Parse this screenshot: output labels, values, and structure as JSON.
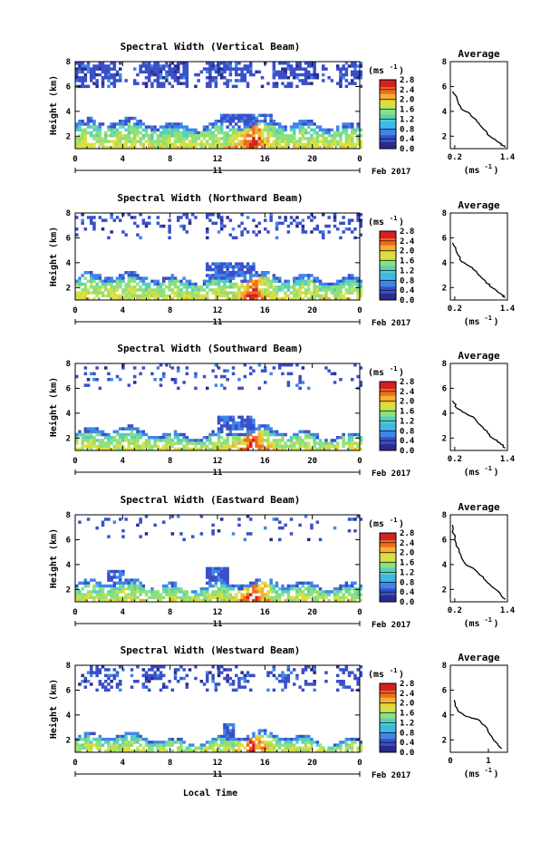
{
  "figure": {
    "xlabel_bottom": "Local Time",
    "date_label": "Feb 2017",
    "day_label": "11",
    "colorbar_unit": "(ms",
    "colorbar_unit_exp": "-1",
    "colorbar_unit_close": ")",
    "colorbar_ticks": [
      "0.0",
      "0.4",
      "0.8",
      "1.2",
      "1.6",
      "2.0",
      "2.4",
      "2.8"
    ],
    "avg_title": "Average",
    "avg_xlabel": "(ms",
    "avg_xlabel_exp": "-1",
    "avg_xlabel_close": ")",
    "ylabel": "Height (km)",
    "colors": {
      "scale": [
        "#2b2b8a",
        "#3a4fc8",
        "#3f86e8",
        "#3fb8e8",
        "#55d0c0",
        "#8ee07a",
        "#d8e040",
        "#f5b030",
        "#f06a20",
        "#d42020"
      ]
    }
  },
  "chart_data": [
    {
      "type": "heatmap",
      "title": "Spectral Width (Vertical Beam)",
      "xlabel": "",
      "ylabel": "Height (km)",
      "x_ticks": [
        "0",
        "4",
        "8",
        "12",
        "16",
        "20",
        "0"
      ],
      "y_ticks": [
        "2",
        "4",
        "6",
        "8"
      ],
      "xlim": [
        0,
        24
      ],
      "ylim": [
        1,
        8
      ],
      "colorbar": {
        "range": [
          0.0,
          2.8
        ],
        "ticks": [
          "0.0",
          "0.4",
          "0.8",
          "1.2",
          "1.6",
          "2.0",
          "2.4",
          "2.8"
        ]
      },
      "average_profile": {
        "x_ticks": [
          "0.2",
          "1.4"
        ],
        "y_ticks": [
          "2",
          "4",
          "6",
          "8"
        ],
        "xlim": [
          0.1,
          1.4
        ],
        "points": [
          [
            0.15,
            5.6
          ],
          [
            0.25,
            5.0
          ],
          [
            0.35,
            4.2
          ],
          [
            0.55,
            3.8
          ],
          [
            0.7,
            3.2
          ],
          [
            0.85,
            2.6
          ],
          [
            1.0,
            2.0
          ],
          [
            1.2,
            1.5
          ],
          [
            1.35,
            1.1
          ]
        ]
      }
    },
    {
      "type": "heatmap",
      "title": "Spectral Width (Northward Beam)",
      "xlabel": "",
      "ylabel": "Height (km)",
      "x_ticks": [
        "0",
        "4",
        "8",
        "12",
        "16",
        "20",
        "0"
      ],
      "y_ticks": [
        "2",
        "4",
        "6",
        "8"
      ],
      "xlim": [
        0,
        24
      ],
      "ylim": [
        1,
        8
      ],
      "colorbar": {
        "range": [
          0.0,
          2.8
        ],
        "ticks": [
          "0.0",
          "0.4",
          "0.8",
          "1.2",
          "1.6",
          "2.0",
          "2.4",
          "2.8"
        ]
      },
      "average_profile": {
        "x_ticks": [
          "0.2",
          "1.4"
        ],
        "y_ticks": [
          "2",
          "4",
          "6",
          "8"
        ],
        "xlim": [
          0.1,
          1.4
        ],
        "points": [
          [
            0.15,
            5.6
          ],
          [
            0.25,
            4.8
          ],
          [
            0.35,
            4.1
          ],
          [
            0.6,
            3.6
          ],
          [
            0.75,
            3.0
          ],
          [
            0.9,
            2.5
          ],
          [
            1.05,
            2.0
          ],
          [
            1.25,
            1.5
          ],
          [
            1.35,
            1.2
          ]
        ]
      }
    },
    {
      "type": "heatmap",
      "title": "Spectral Width (Southward Beam)",
      "xlabel": "",
      "ylabel": "Height (km)",
      "x_ticks": [
        "0",
        "4",
        "8",
        "12",
        "16",
        "20",
        "0"
      ],
      "y_ticks": [
        "2",
        "4",
        "6",
        "8"
      ],
      "xlim": [
        0,
        24
      ],
      "ylim": [
        1,
        8
      ],
      "colorbar": {
        "range": [
          0.0,
          2.8
        ],
        "ticks": [
          "0.0",
          "0.4",
          "0.8",
          "1.2",
          "1.6",
          "2.0",
          "2.4",
          "2.8"
        ]
      },
      "average_profile": {
        "x_ticks": [
          "0.2",
          "1.4"
        ],
        "y_ticks": [
          "2",
          "4",
          "6",
          "8"
        ],
        "xlim": [
          0.1,
          1.4
        ],
        "points": [
          [
            0.15,
            5.0
          ],
          [
            0.25,
            4.4
          ],
          [
            0.45,
            4.0
          ],
          [
            0.65,
            3.6
          ],
          [
            0.8,
            3.0
          ],
          [
            0.95,
            2.4
          ],
          [
            1.1,
            1.9
          ],
          [
            1.25,
            1.5
          ],
          [
            1.35,
            1.2
          ]
        ]
      }
    },
    {
      "type": "heatmap",
      "title": "Spectral Width (Eastward Beam)",
      "xlabel": "",
      "ylabel": "Height (km)",
      "x_ticks": [
        "0",
        "4",
        "8",
        "12",
        "16",
        "20",
        "0"
      ],
      "y_ticks": [
        "2",
        "4",
        "6",
        "8"
      ],
      "xlim": [
        0,
        24
      ],
      "ylim": [
        1,
        8
      ],
      "colorbar": {
        "range": [
          0.0,
          2.8
        ],
        "ticks": [
          "0.0",
          "0.4",
          "0.8",
          "1.2",
          "1.6",
          "2.0",
          "2.4",
          "2.8"
        ]
      },
      "average_profile": {
        "x_ticks": [
          "0.2",
          "1.4"
        ],
        "y_ticks": [
          "2",
          "4",
          "6",
          "8"
        ],
        "xlim": [
          0.1,
          1.4
        ],
        "points": [
          [
            0.15,
            7.2
          ],
          [
            0.2,
            6.0
          ],
          [
            0.3,
            5.0
          ],
          [
            0.45,
            4.0
          ],
          [
            0.65,
            3.6
          ],
          [
            0.85,
            3.0
          ],
          [
            1.0,
            2.4
          ],
          [
            1.2,
            1.8
          ],
          [
            1.35,
            1.2
          ]
        ]
      }
    },
    {
      "type": "heatmap",
      "title": "Spectral Width (Westward Beam)",
      "xlabel": "Local Time",
      "ylabel": "Height (km)",
      "x_ticks": [
        "0",
        "4",
        "8",
        "12",
        "16",
        "20",
        "0"
      ],
      "y_ticks": [
        "2",
        "4",
        "6",
        "8"
      ],
      "xlim": [
        0,
        24
      ],
      "ylim": [
        1,
        8
      ],
      "colorbar": {
        "range": [
          0.0,
          2.8
        ],
        "ticks": [
          "0.0",
          "0.4",
          "0.8",
          "1.2",
          "1.6",
          "2.0",
          "2.4",
          "2.8"
        ]
      },
      "average_profile": {
        "x_ticks": [
          "0",
          "1"
        ],
        "y_ticks": [
          "2",
          "4",
          "6",
          "8"
        ],
        "xlim": [
          0,
          1.5
        ],
        "points": [
          [
            0.1,
            5.2
          ],
          [
            0.2,
            4.3
          ],
          [
            0.4,
            3.9
          ],
          [
            0.75,
            3.6
          ],
          [
            0.95,
            3.0
          ],
          [
            1.05,
            2.4
          ],
          [
            1.2,
            1.8
          ],
          [
            1.35,
            1.3
          ]
        ]
      }
    }
  ]
}
